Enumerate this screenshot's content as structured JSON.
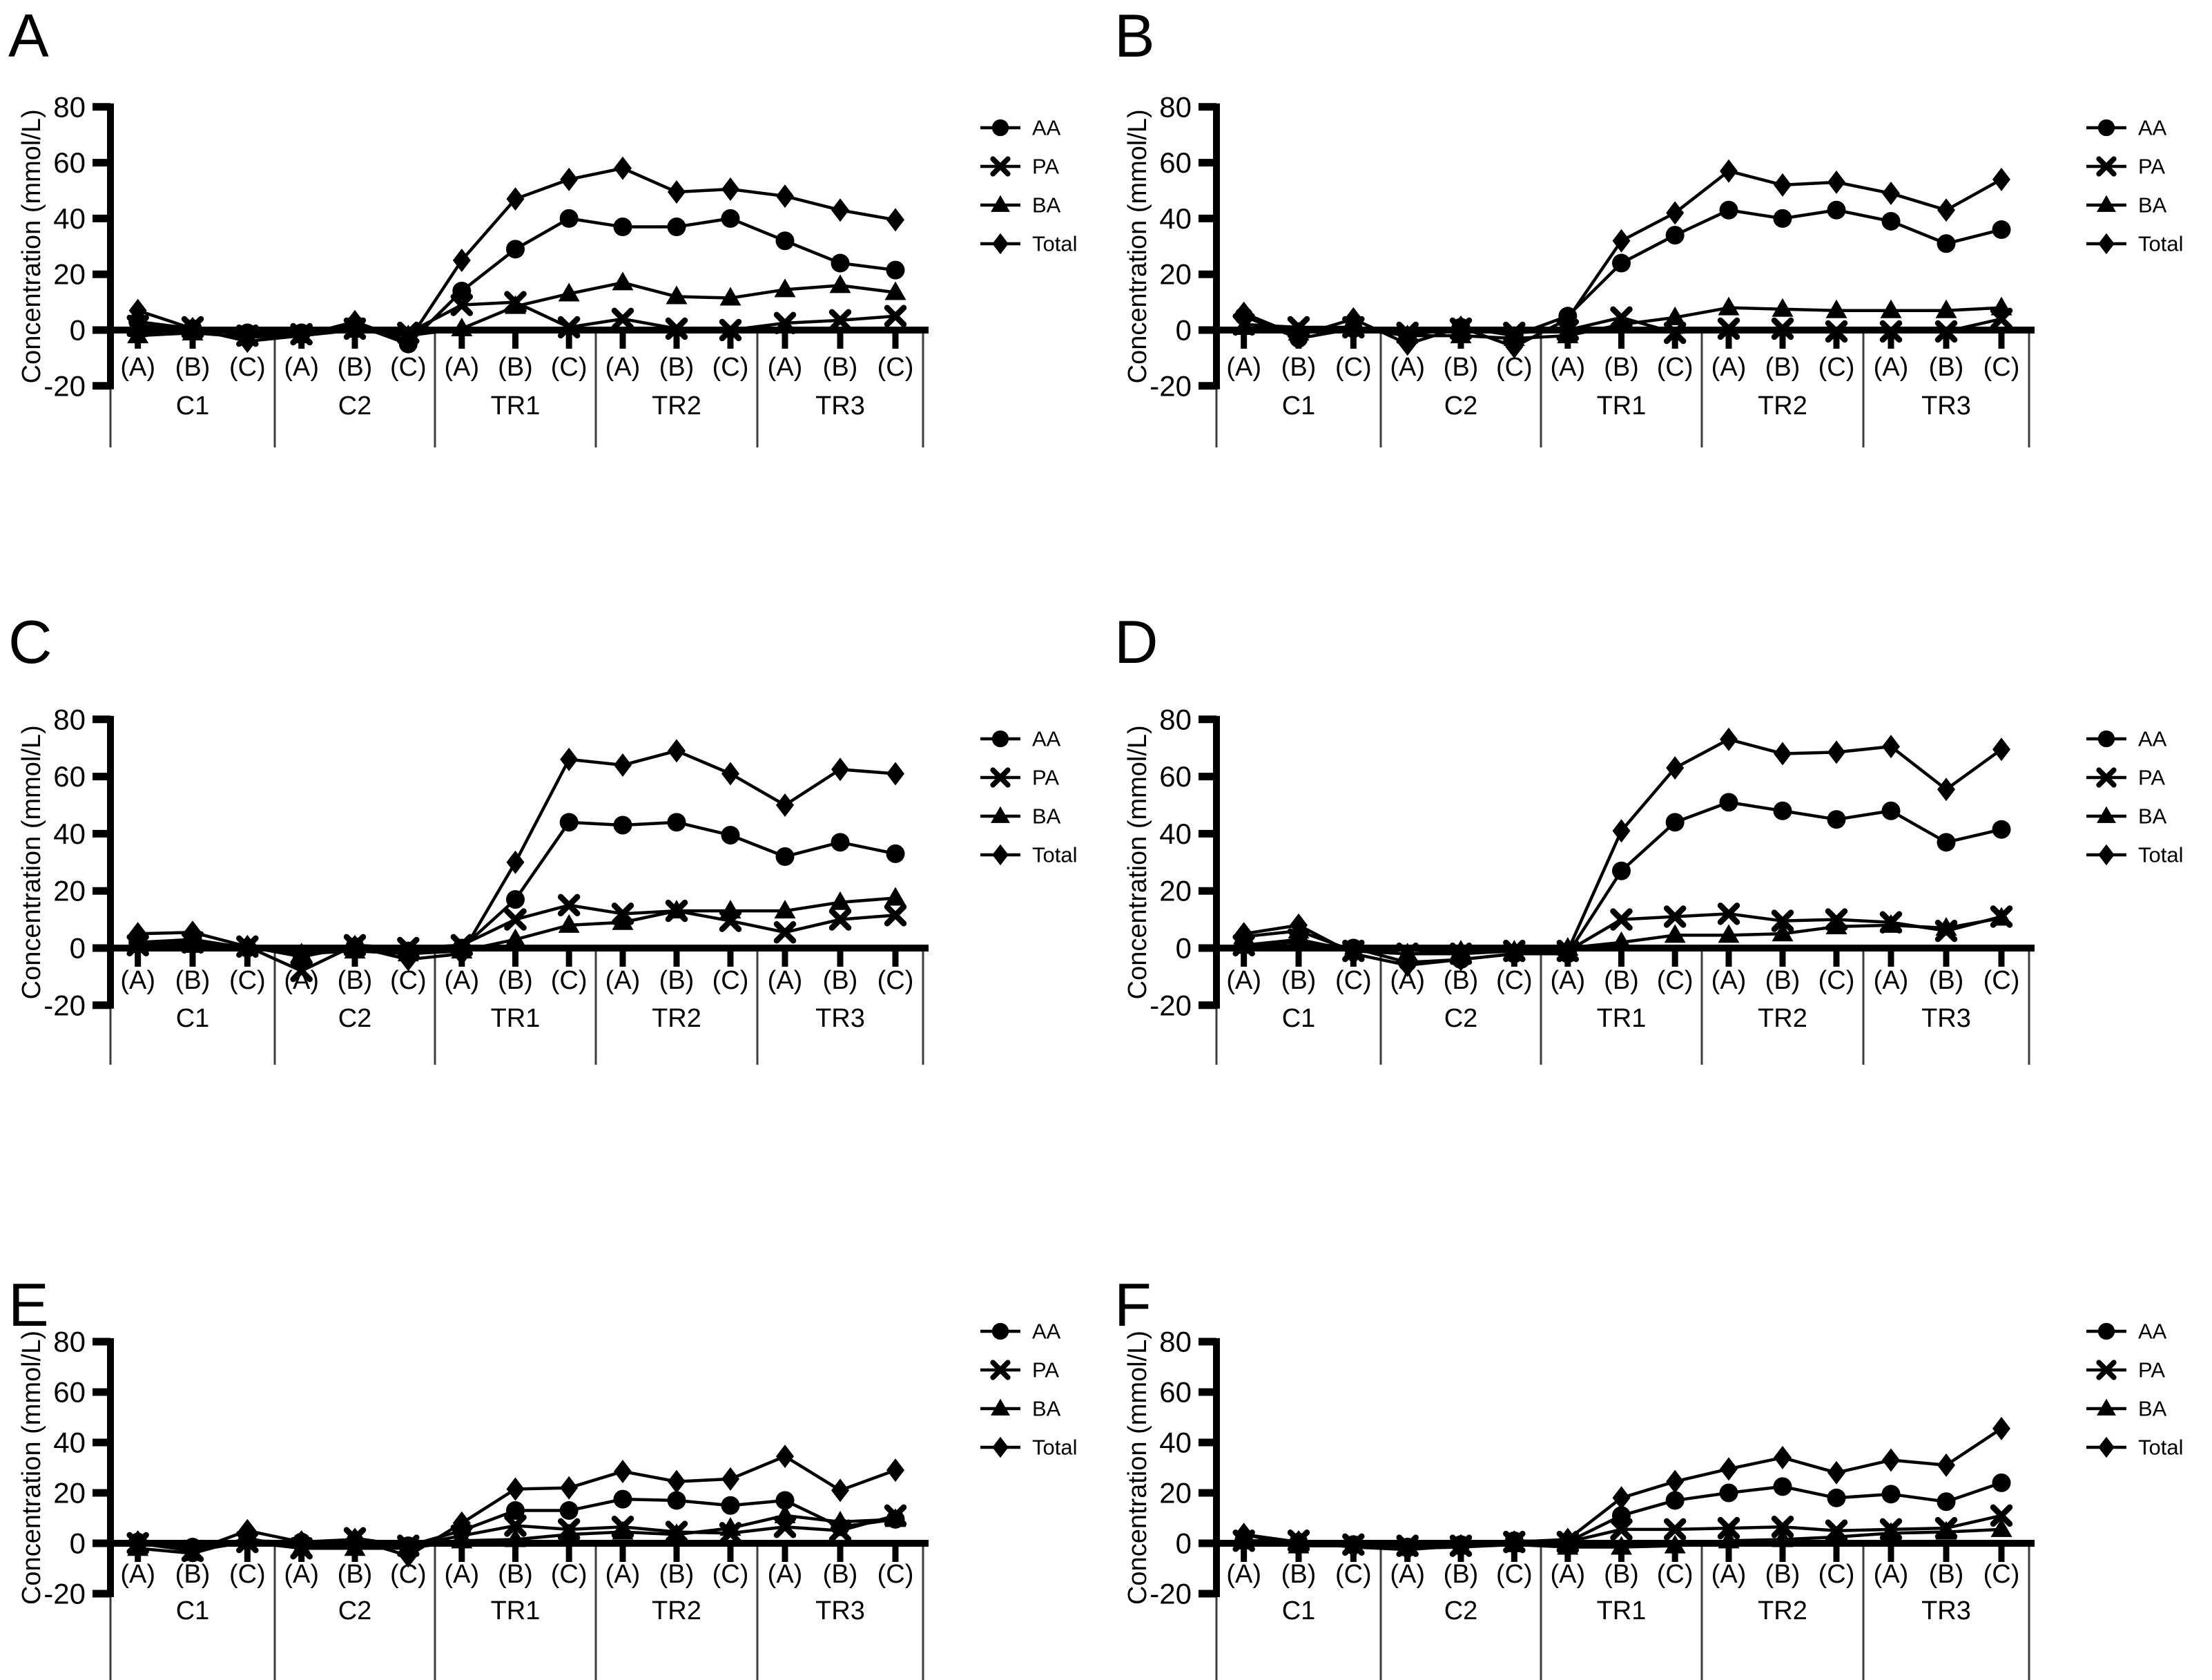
{
  "figure": {
    "background": "#ffffff",
    "ink_color": "#000000",
    "separator_color": "#3c3c3c"
  },
  "chart_data": [
    {
      "panel": "A",
      "type": "line",
      "ylabel": "Concentration (mmol/L)",
      "ylim": [
        -20,
        80
      ],
      "yticks": [
        -20,
        0,
        20,
        40,
        60,
        80
      ],
      "groups": [
        "C1",
        "C2",
        "TR1",
        "TR2",
        "TR3"
      ],
      "subcategories": [
        "(A)",
        "(B)",
        "(C)"
      ],
      "categories": [
        "C1 (A)",
        "C1 (B)",
        "C1 (C)",
        "C2 (A)",
        "C2 (B)",
        "C2 (C)",
        "TR1 (A)",
        "TR1 (B)",
        "TR1 (C)",
        "TR2 (A)",
        "TR2 (B)",
        "TR2 (C)",
        "TR3 (A)",
        "TR3 (B)",
        "TR3 (C)"
      ],
      "legend_position": "right",
      "series": [
        {
          "name": "AA",
          "marker": "circle",
          "values": [
            3,
            0.5,
            -1,
            -1,
            2,
            -5,
            14,
            29,
            40,
            37,
            37,
            40,
            32,
            24,
            21.5
          ]
        },
        {
          "name": "PA",
          "marker": "x",
          "values": [
            1.5,
            1,
            -2,
            -1.5,
            0.5,
            -1,
            9,
            10,
            1,
            4,
            0.5,
            0,
            2.5,
            3.5,
            5
          ]
        },
        {
          "name": "BA",
          "marker": "triangle",
          "values": [
            -2,
            -1,
            -2.5,
            -2,
            0,
            -2,
            0.5,
            8.5,
            13,
            17,
            12,
            11.5,
            14.5,
            16,
            13.5
          ]
        },
        {
          "name": "Total",
          "marker": "diamond",
          "values": [
            7,
            0.5,
            -4,
            -2,
            3,
            -4,
            25,
            47,
            54,
            58,
            49.5,
            50.5,
            48,
            43,
            39.5
          ]
        }
      ]
    },
    {
      "panel": "B",
      "type": "line",
      "ylabel": "Concentration (mmol/L)",
      "ylim": [
        -20,
        80
      ],
      "yticks": [
        -20,
        0,
        20,
        40,
        60,
        80
      ],
      "groups": [
        "C1",
        "C2",
        "TR1",
        "TR2",
        "TR3"
      ],
      "subcategories": [
        "(A)",
        "(B)",
        "(C)"
      ],
      "categories": [
        "C1 (A)",
        "C1 (B)",
        "C1 (C)",
        "C2 (A)",
        "C2 (B)",
        "C2 (C)",
        "TR1 (A)",
        "TR1 (B)",
        "TR1 (C)",
        "TR2 (A)",
        "TR2 (B)",
        "TR2 (C)",
        "TR3 (A)",
        "TR3 (B)",
        "TR3 (C)"
      ],
      "legend_position": "right",
      "series": [
        {
          "name": "AA",
          "marker": "circle",
          "values": [
            5,
            -3,
            0.5,
            -2,
            1,
            -2,
            5,
            24,
            34,
            43,
            40,
            43,
            39,
            31,
            36
          ]
        },
        {
          "name": "PA",
          "marker": "x",
          "values": [
            2,
            1,
            1,
            -1,
            0.5,
            -1,
            0,
            4.5,
            -1,
            0.5,
            0.5,
            -0.5,
            -0.5,
            -0.5,
            4
          ]
        },
        {
          "name": "BA",
          "marker": "triangle",
          "values": [
            1,
            -1,
            1,
            -2,
            -2,
            -3,
            -2,
            2,
            4.5,
            8,
            7.5,
            7,
            7,
            7,
            8
          ]
        },
        {
          "name": "Total",
          "marker": "diamond",
          "values": [
            6,
            -2,
            4,
            -5,
            1,
            -6,
            4,
            32,
            42,
            57,
            52,
            53,
            49,
            43,
            54
          ]
        }
      ]
    },
    {
      "panel": "C",
      "type": "line",
      "ylabel": "Concentration (mmol/L)",
      "ylim": [
        -20,
        80
      ],
      "yticks": [
        -20,
        0,
        20,
        40,
        60,
        80
      ],
      "groups": [
        "C1",
        "C2",
        "TR1",
        "TR2",
        "TR3"
      ],
      "subcategories": [
        "(A)",
        "(B)",
        "(C)"
      ],
      "categories": [
        "C1 (A)",
        "C1 (B)",
        "C1 (C)",
        "C2 (A)",
        "C2 (B)",
        "C2 (C)",
        "TR1 (A)",
        "TR1 (B)",
        "TR1 (C)",
        "TR2 (A)",
        "TR2 (B)",
        "TR2 (C)",
        "TR3 (A)",
        "TR3 (B)",
        "TR3 (C)"
      ],
      "legend_position": "right",
      "series": [
        {
          "name": "AA",
          "marker": "circle",
          "values": [
            2,
            3,
            0,
            -2,
            0.5,
            -1,
            0,
            17,
            44,
            43,
            44,
            39.5,
            32,
            37,
            33
          ]
        },
        {
          "name": "PA",
          "marker": "x",
          "values": [
            1,
            2,
            0.5,
            -8,
            1,
            0,
            1,
            10,
            15,
            12,
            13,
            9.5,
            5.5,
            10,
            11.5
          ]
        },
        {
          "name": "BA",
          "marker": "triangle",
          "values": [
            1,
            1,
            0,
            -2,
            -1,
            -2,
            -1,
            3,
            8,
            9,
            13,
            13,
            13,
            16,
            17.5
          ]
        },
        {
          "name": "Total",
          "marker": "diamond",
          "values": [
            5,
            5.5,
            0.5,
            -3,
            0.5,
            -4,
            -2,
            30,
            66,
            64,
            69,
            61,
            50,
            62.5,
            61
          ]
        }
      ]
    },
    {
      "panel": "D",
      "type": "line",
      "ylabel": "Concentration (mmol/L)",
      "ylim": [
        -20,
        80
      ],
      "yticks": [
        -20,
        0,
        20,
        40,
        60,
        80
      ],
      "groups": [
        "C1",
        "C2",
        "TR1",
        "TR2",
        "TR3"
      ],
      "subcategories": [
        "(A)",
        "(B)",
        "(C)"
      ],
      "categories": [
        "C1 (A)",
        "C1 (B)",
        "C1 (C)",
        "C2 (A)",
        "C2 (B)",
        "C2 (C)",
        "TR1 (A)",
        "TR1 (B)",
        "TR1 (C)",
        "TR2 (A)",
        "TR2 (B)",
        "TR2 (C)",
        "TR3 (A)",
        "TR3 (B)",
        "TR3 (C)"
      ],
      "legend_position": "right",
      "series": [
        {
          "name": "AA",
          "marker": "circle",
          "values": [
            1,
            2,
            0,
            -5,
            -4,
            -2,
            -2,
            27,
            44,
            51,
            48,
            45,
            48,
            37,
            41.5
          ]
        },
        {
          "name": "PA",
          "marker": "x",
          "values": [
            1,
            3,
            -1,
            -2,
            -2,
            -1,
            -1,
            10,
            11,
            12,
            9.5,
            10,
            9,
            6,
            11
          ]
        },
        {
          "name": "BA",
          "marker": "triangle",
          "values": [
            4,
            6,
            -1,
            -2,
            -1,
            -1,
            0,
            2,
            4.5,
            4.5,
            5,
            7.5,
            8,
            7,
            10.5
          ]
        },
        {
          "name": "Total",
          "marker": "diamond",
          "values": [
            5,
            8,
            -2,
            -6,
            -4,
            -2,
            -1,
            41,
            63,
            73,
            68,
            68.5,
            70.5,
            55.5,
            69.5
          ]
        }
      ]
    },
    {
      "panel": "E",
      "type": "line",
      "ylabel": "Concentration (mmol/L)",
      "ylim": [
        -20,
        80
      ],
      "yticks": [
        -20,
        0,
        20,
        40,
        60,
        80
      ],
      "groups": [
        "C1",
        "C2",
        "TR1",
        "TR2",
        "TR3"
      ],
      "subcategories": [
        "(A)",
        "(B)",
        "(C)"
      ],
      "categories": [
        "C1 (A)",
        "C1 (B)",
        "C1 (C)",
        "C2 (A)",
        "C2 (B)",
        "C2 (C)",
        "TR1 (A)",
        "TR1 (B)",
        "TR1 (C)",
        "TR2 (A)",
        "TR2 (B)",
        "TR2 (C)",
        "TR3 (A)",
        "TR3 (B)",
        "TR3 (C)"
      ],
      "legend_position": "right",
      "series": [
        {
          "name": "AA",
          "marker": "circle",
          "values": [
            0.5,
            -1.5,
            1,
            0.5,
            0.5,
            -1,
            5,
            13,
            13,
            17.5,
            17,
            15,
            17,
            6.5,
            9.5
          ]
        },
        {
          "name": "PA",
          "marker": "x",
          "values": [
            0,
            -3,
            0.5,
            -2,
            2,
            -1,
            3,
            7,
            5.5,
            6.5,
            4.5,
            4,
            6.5,
            5,
            11
          ]
        },
        {
          "name": "BA",
          "marker": "triangle",
          "values": [
            -2,
            -4,
            2,
            -2,
            -2,
            -2,
            1,
            1.5,
            3.5,
            4.5,
            3.5,
            6,
            11,
            8.5,
            9.5
          ]
        },
        {
          "name": "Total",
          "marker": "diamond",
          "values": [
            0.5,
            -3,
            5,
            0.5,
            1.5,
            -5,
            8,
            21.5,
            22,
            28.5,
            24.5,
            25.5,
            34.5,
            21,
            29
          ]
        }
      ]
    },
    {
      "panel": "F",
      "type": "line",
      "ylabel": "Concentration (mmol/L)",
      "ylim": [
        -20,
        80
      ],
      "yticks": [
        -20,
        0,
        20,
        40,
        60,
        80
      ],
      "groups": [
        "C1",
        "C2",
        "TR1",
        "TR2",
        "TR3"
      ],
      "subcategories": [
        "(A)",
        "(B)",
        "(C)"
      ],
      "categories": [
        "C1 (A)",
        "C1 (B)",
        "C1 (C)",
        "C2 (A)",
        "C2 (B)",
        "C2 (C)",
        "TR1 (A)",
        "TR1 (B)",
        "TR1 (C)",
        "TR2 (A)",
        "TR2 (B)",
        "TR2 (C)",
        "TR3 (A)",
        "TR3 (B)",
        "TR3 (C)"
      ],
      "legend_position": "right",
      "series": [
        {
          "name": "AA",
          "marker": "circle",
          "values": [
            1,
            0.5,
            -0.5,
            -1.5,
            -0.5,
            1,
            0.5,
            11,
            17,
            20,
            22.5,
            18,
            19.5,
            16.5,
            24
          ]
        },
        {
          "name": "PA",
          "marker": "x",
          "values": [
            1,
            1,
            -0.5,
            -1,
            -1,
            0.5,
            0.5,
            5.5,
            5.5,
            6,
            6.5,
            5,
            5.5,
            6,
            11
          ]
        },
        {
          "name": "BA",
          "marker": "triangle",
          "values": [
            3.5,
            -1,
            -1,
            -2,
            -1.5,
            -0.5,
            -1.5,
            -1.5,
            -1,
            1,
            1.5,
            2.5,
            4,
            4.5,
            5.5
          ]
        },
        {
          "name": "Total",
          "marker": "diamond",
          "values": [
            3.5,
            0.5,
            -1.5,
            -2.5,
            -1,
            0.5,
            1.5,
            18,
            24.5,
            29.5,
            34,
            28,
            33,
            31,
            45.5
          ]
        }
      ]
    }
  ]
}
